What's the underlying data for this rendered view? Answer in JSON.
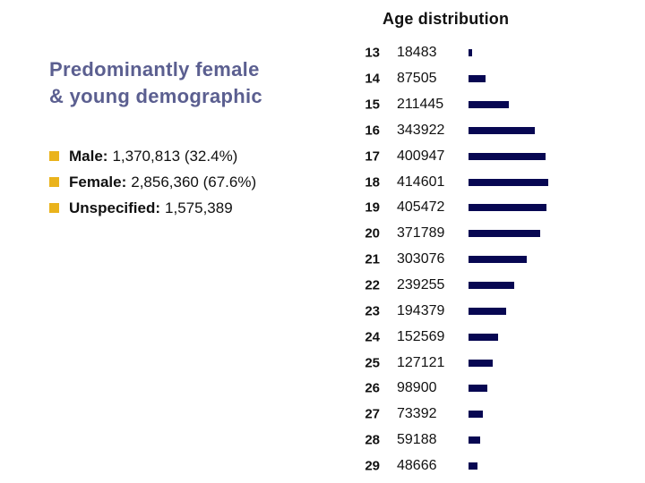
{
  "slide": {
    "title": "Age distribution"
  },
  "left_panel": {
    "heading": "Predominantly female & young demographic",
    "heading_lines": [
      "Predominantly female",
      "& young demographic"
    ],
    "bullets": [
      {
        "label": "Male:",
        "value": "1,370,813 (32.4%)"
      },
      {
        "label": "Female:",
        "value": "2,856,360 (67.6%)"
      },
      {
        "label": "Unspecified:",
        "value": "1,575,389"
      }
    ]
  },
  "chart_data": {
    "type": "bar",
    "orientation": "horizontal",
    "title": "Age distribution",
    "categories": [
      13,
      14,
      15,
      16,
      17,
      18,
      19,
      20,
      21,
      22,
      23,
      24,
      25,
      26,
      27,
      28,
      29
    ],
    "values": [
      18483,
      87505,
      211445,
      343922,
      400947,
      414601,
      405472,
      371789,
      303076,
      239255,
      194379,
      152569,
      127121,
      98900,
      73392,
      59188,
      48666
    ],
    "xlabel": "",
    "ylabel": "",
    "xlim": [
      0,
      414601
    ],
    "grid": false,
    "legend": false,
    "value_labels_shown": true,
    "bar_color": "#070752"
  },
  "colors": {
    "background": "#ffffff",
    "text": "#111111",
    "heading": "#5b5f90",
    "bullet_marker": "#eab31c",
    "bar": "#070752"
  }
}
